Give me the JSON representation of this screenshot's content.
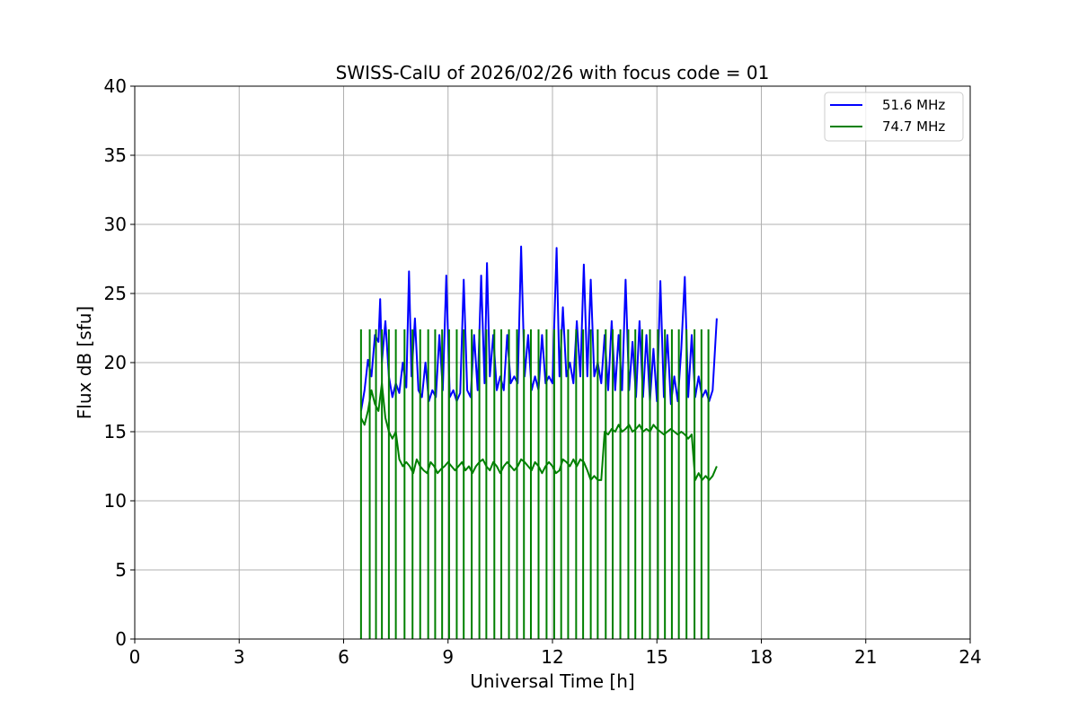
{
  "chart_data": {
    "type": "line",
    "title": "SWISS-CalU of 2026/02/26 with focus code = 01",
    "xlabel": "Universal Time [h]",
    "ylabel": "Flux dB [sfu]",
    "xlim": [
      0,
      24
    ],
    "ylim": [
      0,
      40
    ],
    "xticks": [
      0,
      3,
      6,
      9,
      12,
      15,
      18,
      21,
      24
    ],
    "yticks": [
      0,
      5,
      10,
      15,
      20,
      25,
      30,
      35,
      40
    ],
    "xtick_labels": [
      "0",
      "3",
      "6",
      "9",
      "12",
      "15",
      "18",
      "21",
      "24"
    ],
    "ytick_labels": [
      "0",
      "5",
      "10",
      "15",
      "20",
      "25",
      "30",
      "35",
      "40"
    ],
    "grid": true,
    "legend_position": "top-right",
    "series": [
      {
        "name": "51.6 MHz",
        "color": "#0000ff",
        "x": [
          6.5,
          6.6,
          6.7,
          6.8,
          6.9,
          7.0,
          7.05,
          7.1,
          7.2,
          7.3,
          7.4,
          7.5,
          7.6,
          7.7,
          7.8,
          7.88,
          7.95,
          8.05,
          8.15,
          8.25,
          8.35,
          8.45,
          8.55,
          8.65,
          8.75,
          8.85,
          8.95,
          9.05,
          9.15,
          9.25,
          9.35,
          9.45,
          9.55,
          9.65,
          9.75,
          9.85,
          9.95,
          10.05,
          10.12,
          10.2,
          10.3,
          10.4,
          10.5,
          10.6,
          10.7,
          10.8,
          10.9,
          11.0,
          11.1,
          11.2,
          11.3,
          11.4,
          11.5,
          11.6,
          11.7,
          11.8,
          11.9,
          12.0,
          12.12,
          12.2,
          12.3,
          12.4,
          12.5,
          12.6,
          12.7,
          12.8,
          12.9,
          13.0,
          13.1,
          13.2,
          13.3,
          13.4,
          13.5,
          13.6,
          13.7,
          13.8,
          13.9,
          14.0,
          14.1,
          14.2,
          14.3,
          14.4,
          14.5,
          14.6,
          14.7,
          14.8,
          14.9,
          15.0,
          15.1,
          15.2,
          15.3,
          15.4,
          15.5,
          15.6,
          15.7,
          15.8,
          15.9,
          16.0,
          16.1,
          16.2,
          16.3,
          16.4,
          16.5,
          16.6,
          16.72
        ],
        "y": [
          16.5,
          18.0,
          20.2,
          19.0,
          22.0,
          21.5,
          24.6,
          20.0,
          23.0,
          19.0,
          17.5,
          18.5,
          17.8,
          20.0,
          18.2,
          26.6,
          19.0,
          23.2,
          18.0,
          17.5,
          20.0,
          17.2,
          18.0,
          17.5,
          22.0,
          18.0,
          26.3,
          17.5,
          18.0,
          17.2,
          17.8,
          26.0,
          18.0,
          17.5,
          22.0,
          18.0,
          26.3,
          18.5,
          27.2,
          19.0,
          22.0,
          18.0,
          19.0,
          18.0,
          22.0,
          18.5,
          19.0,
          18.5,
          28.4,
          19.0,
          22.0,
          18.0,
          19.0,
          18.0,
          22.0,
          18.5,
          19.0,
          18.5,
          28.3,
          19.0,
          24.0,
          19.0,
          20.0,
          18.5,
          23.0,
          19.0,
          27.1,
          19.0,
          26.0,
          19.0,
          20.0,
          18.5,
          22.0,
          18.0,
          23.0,
          18.0,
          22.0,
          18.0,
          26.0,
          18.0,
          21.5,
          17.5,
          23.0,
          17.5,
          22.0,
          17.2,
          21.0,
          17.2,
          25.9,
          17.5,
          22.0,
          17.0,
          19.0,
          17.2,
          21.0,
          26.2,
          17.5,
          22.0,
          17.5,
          19.0,
          17.5,
          18.0,
          17.2,
          18.0,
          23.2
        ]
      },
      {
        "name": "74.7 MHz",
        "color": "#008000",
        "x": [
          6.5,
          6.6,
          6.7,
          6.8,
          6.9,
          7.0,
          7.1,
          7.2,
          7.3,
          7.4,
          7.5,
          7.6,
          7.7,
          7.8,
          7.9,
          8.0,
          8.1,
          8.2,
          8.3,
          8.4,
          8.5,
          8.6,
          8.7,
          8.8,
          8.9,
          9.0,
          9.1,
          9.2,
          9.3,
          9.4,
          9.5,
          9.6,
          9.7,
          9.8,
          9.9,
          10.0,
          10.1,
          10.2,
          10.3,
          10.4,
          10.5,
          10.6,
          10.7,
          10.8,
          10.9,
          11.0,
          11.1,
          11.2,
          11.3,
          11.4,
          11.5,
          11.6,
          11.7,
          11.8,
          11.9,
          12.0,
          12.1,
          12.2,
          12.3,
          12.4,
          12.5,
          12.6,
          12.7,
          12.8,
          12.9,
          13.0,
          13.1,
          13.2,
          13.3,
          13.4,
          13.5,
          13.6,
          13.7,
          13.8,
          13.9,
          14.0,
          14.1,
          14.2,
          14.3,
          14.4,
          14.5,
          14.6,
          14.7,
          14.8,
          14.9,
          15.0,
          15.1,
          15.2,
          15.3,
          15.4,
          15.5,
          15.6,
          15.7,
          15.8,
          15.9,
          16.0,
          16.1,
          16.2,
          16.3,
          16.4,
          16.5,
          16.6,
          16.72
        ],
        "y": [
          16.0,
          15.5,
          16.5,
          18.0,
          17.0,
          16.5,
          18.5,
          16.0,
          15.0,
          14.5,
          15.0,
          13.0,
          12.5,
          12.8,
          12.5,
          12.0,
          13.0,
          12.5,
          12.2,
          12.0,
          12.8,
          12.5,
          12.0,
          12.3,
          12.5,
          12.8,
          12.5,
          12.2,
          12.5,
          12.8,
          12.2,
          12.5,
          12.0,
          12.5,
          12.8,
          13.0,
          12.5,
          12.2,
          12.8,
          12.5,
          12.0,
          12.5,
          12.8,
          12.5,
          12.2,
          12.5,
          13.0,
          12.8,
          12.5,
          12.2,
          12.8,
          12.5,
          12.0,
          12.5,
          12.8,
          12.5,
          12.0,
          12.2,
          13.0,
          12.8,
          12.5,
          13.0,
          12.5,
          13.0,
          12.8,
          12.2,
          11.5,
          11.8,
          11.5,
          11.5,
          15.0,
          14.8,
          15.2,
          15.0,
          15.5,
          15.0,
          15.2,
          15.5,
          15.0,
          15.2,
          15.5,
          15.0,
          15.2,
          15.0,
          15.5,
          15.2,
          15.0,
          14.8,
          15.0,
          15.2,
          15.0,
          14.8,
          15.0,
          14.8,
          14.5,
          14.8,
          11.5,
          12.0,
          11.5,
          11.8,
          11.5,
          11.8,
          12.5
        ]
      }
    ],
    "calibration_spikes": {
      "x": [
        6.5,
        6.75,
        6.93,
        7.1,
        7.3,
        7.5,
        7.75,
        7.98,
        8.2,
        8.43,
        8.63,
        8.83,
        9.03,
        9.25,
        9.45,
        9.68,
        9.9,
        10.1,
        10.33,
        10.53,
        10.75,
        10.98,
        11.18,
        11.38,
        11.6,
        11.83,
        12.05,
        12.25,
        12.45,
        12.68,
        12.88,
        13.1,
        13.3,
        13.53,
        13.73,
        13.95,
        14.18,
        14.38,
        14.58,
        14.8,
        15.03,
        15.23,
        15.43,
        15.63,
        15.85,
        16.08,
        16.28,
        16.48
      ],
      "top": 22.4,
      "bottom": 0
    }
  },
  "legend": {
    "items": [
      {
        "label": "51.6 MHz",
        "color": "#0000ff"
      },
      {
        "label": "74.7 MHz",
        "color": "#008000"
      }
    ]
  }
}
